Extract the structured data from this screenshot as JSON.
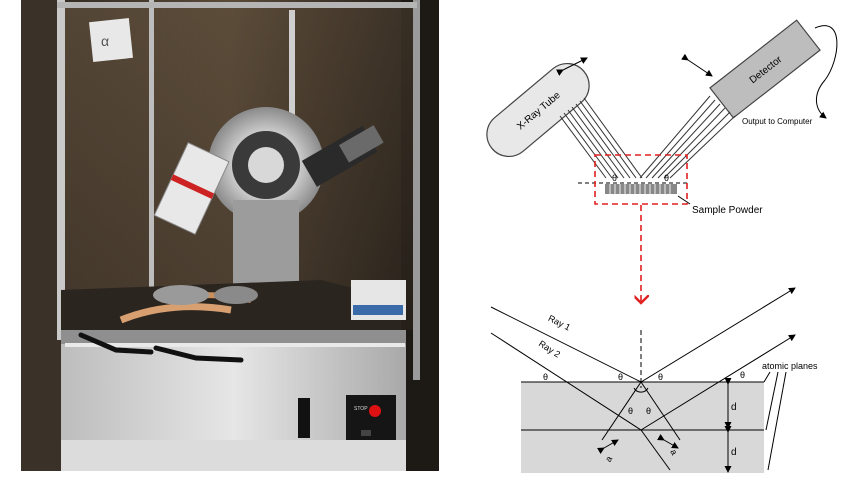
{
  "diagram": {
    "xray_tube_label": "X-Ray Tube",
    "detector_label": "Detector",
    "output_label": "Output to Computer",
    "sample_label": "Sample Powder",
    "theta": "θ",
    "ray1_label": "Ray 1",
    "ray2_label": "Ray 2",
    "atomic_planes_label": "atomic planes",
    "d_label": "d",
    "a_label": "a"
  },
  "photo": {
    "stop_label": "STOP"
  },
  "colors": {
    "highlight": "#e02020",
    "sample_fill": "#d8d8d8",
    "tube_fill": "#e8e8e8",
    "detector_fill": "#bdbdbd"
  }
}
